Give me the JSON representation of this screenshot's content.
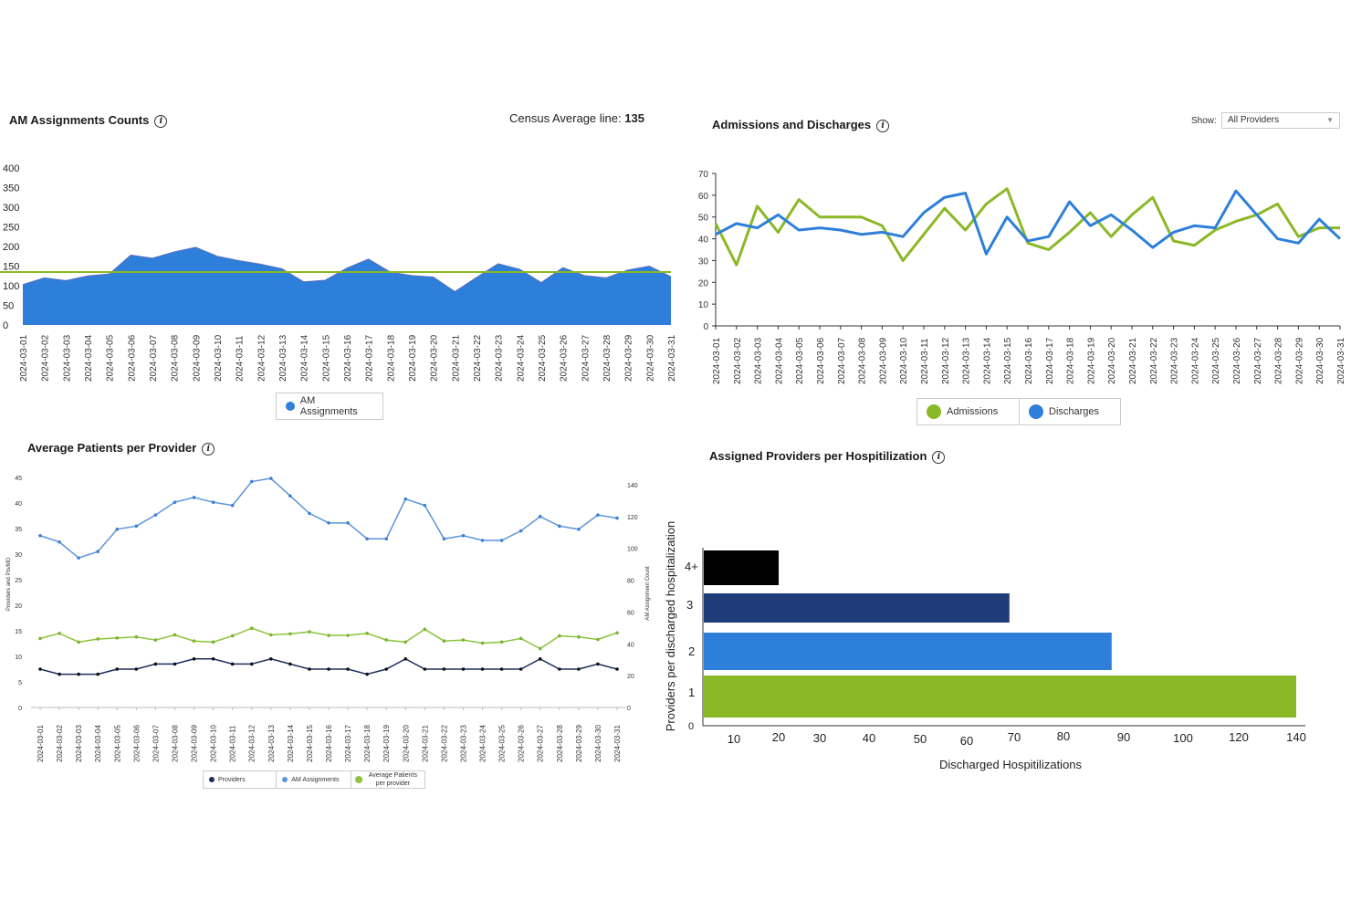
{
  "panels": {
    "am_assignments": {
      "title": "AM Assignments Counts",
      "census_label": "Census Average line:",
      "census_value": "135"
    },
    "admissions": {
      "title": "Admissions and Discharges",
      "show_label": "Show:",
      "show_value": "All Providers"
    },
    "avg_patients": {
      "title": "Average Patients per Provider"
    },
    "assigned_providers": {
      "title": "Assigned Providers per Hospitilization"
    }
  },
  "colors": {
    "blue": "#2e7fd9",
    "green": "#8ab826",
    "navy": "#1f3c78",
    "black": "#000000",
    "light_blue": "#5b95db",
    "light_green": "#8cc43c",
    "dark_navy": "#1b2f5e"
  },
  "chart_data": [
    {
      "type": "area",
      "dates": [
        "2024-03-01",
        "2024-03-02",
        "2024-03-03",
        "2024-03-04",
        "2024-03-05",
        "2024-03-06",
        "2024-03-07",
        "2024-03-08",
        "2024-03-09",
        "2024-03-10",
        "2024-03-11",
        "2024-03-12",
        "2024-03-13",
        "2024-03-14",
        "2024-03-15",
        "2024-03-16",
        "2024-03-17",
        "2024-03-18",
        "2024-03-19",
        "2024-03-20",
        "2024-03-21",
        "2024-03-22",
        "2024-03-23",
        "2024-03-24",
        "2024-03-25",
        "2024-03-26",
        "2024-03-27",
        "2024-03-28",
        "2024-03-29",
        "2024-03-30",
        "2024-03-31"
      ],
      "series": [
        {
          "name": "AM Assignments",
          "values": [
            103,
            120,
            113,
            125,
            130,
            178,
            170,
            186,
            198,
            175,
            164,
            155,
            143,
            110,
            114,
            145,
            168,
            135,
            126,
            122,
            85,
            121,
            156,
            142,
            108,
            146,
            126,
            120,
            140,
            150,
            123
          ]
        }
      ],
      "reference_line": 135,
      "yticks": [
        0,
        50,
        100,
        150,
        200,
        250,
        300,
        350,
        400
      ],
      "ylim": [
        0,
        400
      ]
    },
    {
      "type": "line",
      "dates": [
        "2024-03-01",
        "2024-03-02",
        "2024-03-03",
        "2024-03-04",
        "2024-03-05",
        "2024-03-06",
        "2024-03-07",
        "2024-03-08",
        "2024-03-09",
        "2024-03-10",
        "2024-03-11",
        "2024-03-12",
        "2024-03-13",
        "2024-03-14",
        "2024-03-15",
        "2024-03-16",
        "2024-03-17",
        "2024-03-18",
        "2024-03-19",
        "2024-03-20",
        "2024-03-21",
        "2024-03-22",
        "2024-03-23",
        "2024-03-24",
        "2024-03-25",
        "2024-03-26",
        "2024-03-27",
        "2024-03-28",
        "2024-03-29",
        "2024-03-30",
        "2024-03-31"
      ],
      "series": [
        {
          "name": "Admissions",
          "values": [
            47,
            28,
            55,
            43,
            58,
            50,
            50,
            50,
            46,
            30,
            42,
            54,
            44,
            56,
            63,
            38,
            35,
            43,
            52,
            41,
            51,
            59,
            39,
            37,
            44,
            48,
            51,
            56,
            41,
            45,
            45
          ]
        },
        {
          "name": "Discharges",
          "values": [
            42,
            47,
            45,
            51,
            44,
            45,
            44,
            42,
            43,
            41,
            52,
            59,
            61,
            33,
            50,
            39,
            41,
            57,
            46,
            51,
            44,
            36,
            43,
            46,
            45,
            62,
            51,
            40,
            38,
            49,
            40
          ]
        }
      ],
      "yticks": [
        0,
        10,
        20,
        30,
        40,
        50,
        60,
        70
      ],
      "ylim": [
        0,
        70
      ]
    },
    {
      "type": "line",
      "dates": [
        "2024-03-01",
        "2024-03-02",
        "2024-03-03",
        "2024-03-04",
        "2024-03-05",
        "2024-03-06",
        "2024-03-07",
        "2024-03-08",
        "2024-03-09",
        "2024-03-10",
        "2024-03-11",
        "2024-03-12",
        "2024-03-13",
        "2024-03-14",
        "2024-03-15",
        "2024-03-16",
        "2024-03-17",
        "2024-03-18",
        "2024-03-19",
        "2024-03-20",
        "2024-03-21",
        "2024-03-22",
        "2024-03-23",
        "2024-03-24",
        "2024-03-25",
        "2024-03-26",
        "2024-03-27",
        "2024-03-28",
        "2024-03-29",
        "2024-03-30",
        "2024-03-31"
      ],
      "series": [
        {
          "name": "Providers",
          "axis": "left",
          "values": [
            7.5,
            6.5,
            6.5,
            6.5,
            7.5,
            7.5,
            8.5,
            8.5,
            9.5,
            9.5,
            8.5,
            8.5,
            9.5,
            8.5,
            7.5,
            7.5,
            7.5,
            6.5,
            7.5,
            9.5,
            7.5,
            7.5,
            7.5,
            7.5,
            7.5,
            7.5,
            9.5,
            7.5,
            7.5,
            8.5,
            7.5
          ]
        },
        {
          "name": "AM Assignments",
          "axis": "right",
          "values": [
            108,
            104,
            94,
            98,
            112,
            114,
            121,
            129,
            132,
            129,
            127,
            142,
            144,
            133,
            122,
            116,
            116,
            106,
            106,
            131,
            127,
            106,
            108,
            105,
            105,
            111,
            120,
            114,
            112,
            121,
            119
          ]
        },
        {
          "name": "Average Patients per provider",
          "axis": "left",
          "values": [
            13.5,
            14.5,
            12.8,
            13.4,
            13.6,
            13.8,
            13.2,
            14.2,
            13.0,
            12.8,
            14.0,
            15.5,
            14.2,
            14.4,
            14.8,
            14.1,
            14.1,
            14.5,
            13.2,
            12.8,
            15.3,
            13.0,
            13.2,
            12.6,
            12.8,
            13.5,
            11.5,
            14.0,
            13.8,
            13.3,
            14.6
          ]
        }
      ],
      "left_yticks": [
        0,
        5,
        10,
        15,
        20,
        25,
        30,
        35,
        40,
        45
      ],
      "right_yticks": [
        0,
        20,
        40,
        60,
        80,
        100,
        120,
        140
      ],
      "left_ylabel": "Providers and Pts/MD",
      "right_ylabel": "AM Assignment Count",
      "left_ylim": [
        0,
        45
      ],
      "right_ylim": [
        0,
        140
      ]
    },
    {
      "type": "bar",
      "orientation": "horizontal",
      "categories": [
        "1",
        "2",
        "3",
        "4+"
      ],
      "values": [
        140,
        88,
        69,
        20
      ],
      "xticks": [
        "10",
        "20",
        "30",
        "40",
        "50",
        "60",
        "70",
        "80",
        "90",
        "100",
        "120",
        "140"
      ],
      "xlabel": "Discharged Hospitilizations",
      "ylabel": "Providers per discharged hospitalization",
      "y_zero_label": "0"
    }
  ]
}
